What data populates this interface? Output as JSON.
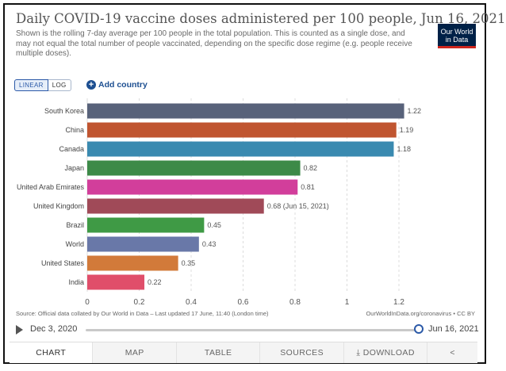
{
  "header": {
    "title": "Daily COVID-19 vaccine doses administered per 100 people, Jun 16, 2021",
    "subtitle": "Shown is the rolling 7-day average per 100 people in the total population. This is counted as a single dose, and may not equal the total number of people vaccinated, depending on the specific dose regime (e.g. people receive multiple doses).",
    "logo_line1": "Our World",
    "logo_line2": "in Data"
  },
  "controls": {
    "linear_label": "LINEAR",
    "log_label": "LOG",
    "add_country_label": "Add country"
  },
  "chart_data": {
    "type": "bar",
    "orientation": "horizontal",
    "title": "Daily COVID-19 vaccine doses administered per 100 people, Jun 16, 2021",
    "categories": [
      "South Korea",
      "China",
      "Canada",
      "Japan",
      "United Arab Emirates",
      "United Kingdom",
      "Brazil",
      "World",
      "United States",
      "India"
    ],
    "values": [
      1.22,
      1.19,
      1.18,
      0.82,
      0.81,
      0.68,
      0.45,
      0.43,
      0.35,
      0.22
    ],
    "value_labels": [
      "1.22",
      "1.19",
      "1.18",
      "0.82",
      "0.81",
      "0.68 (Jun 15, 2021)",
      "0.45",
      "0.43",
      "0.35",
      "0.22"
    ],
    "colors": [
      "#58627a",
      "#c05530",
      "#3a8ab0",
      "#3d8a48",
      "#d23e9b",
      "#a04a58",
      "#3f9a45",
      "#6978a8",
      "#d27a3a",
      "#e04e6a"
    ],
    "xlim": [
      0,
      1.3
    ],
    "xticks": [
      0,
      0.2,
      0.4,
      0.6,
      0.8,
      1,
      1.2
    ],
    "xtick_labels": [
      "0",
      "0.2",
      "0.4",
      "0.6",
      "0.8",
      "1",
      "1.2"
    ],
    "grid": true
  },
  "footer": {
    "source": "Source: Official data collated by Our World in Data – Last updated 17 June, 11:40 (London time)",
    "url": "OurWorldInData.org/coronavirus • CC BY"
  },
  "timeline": {
    "start_date": "Dec 3, 2020",
    "end_date": "Jun 16, 2021"
  },
  "tabs": [
    "CHART",
    "MAP",
    "TABLE",
    "SOURCES",
    "DOWNLOAD"
  ]
}
